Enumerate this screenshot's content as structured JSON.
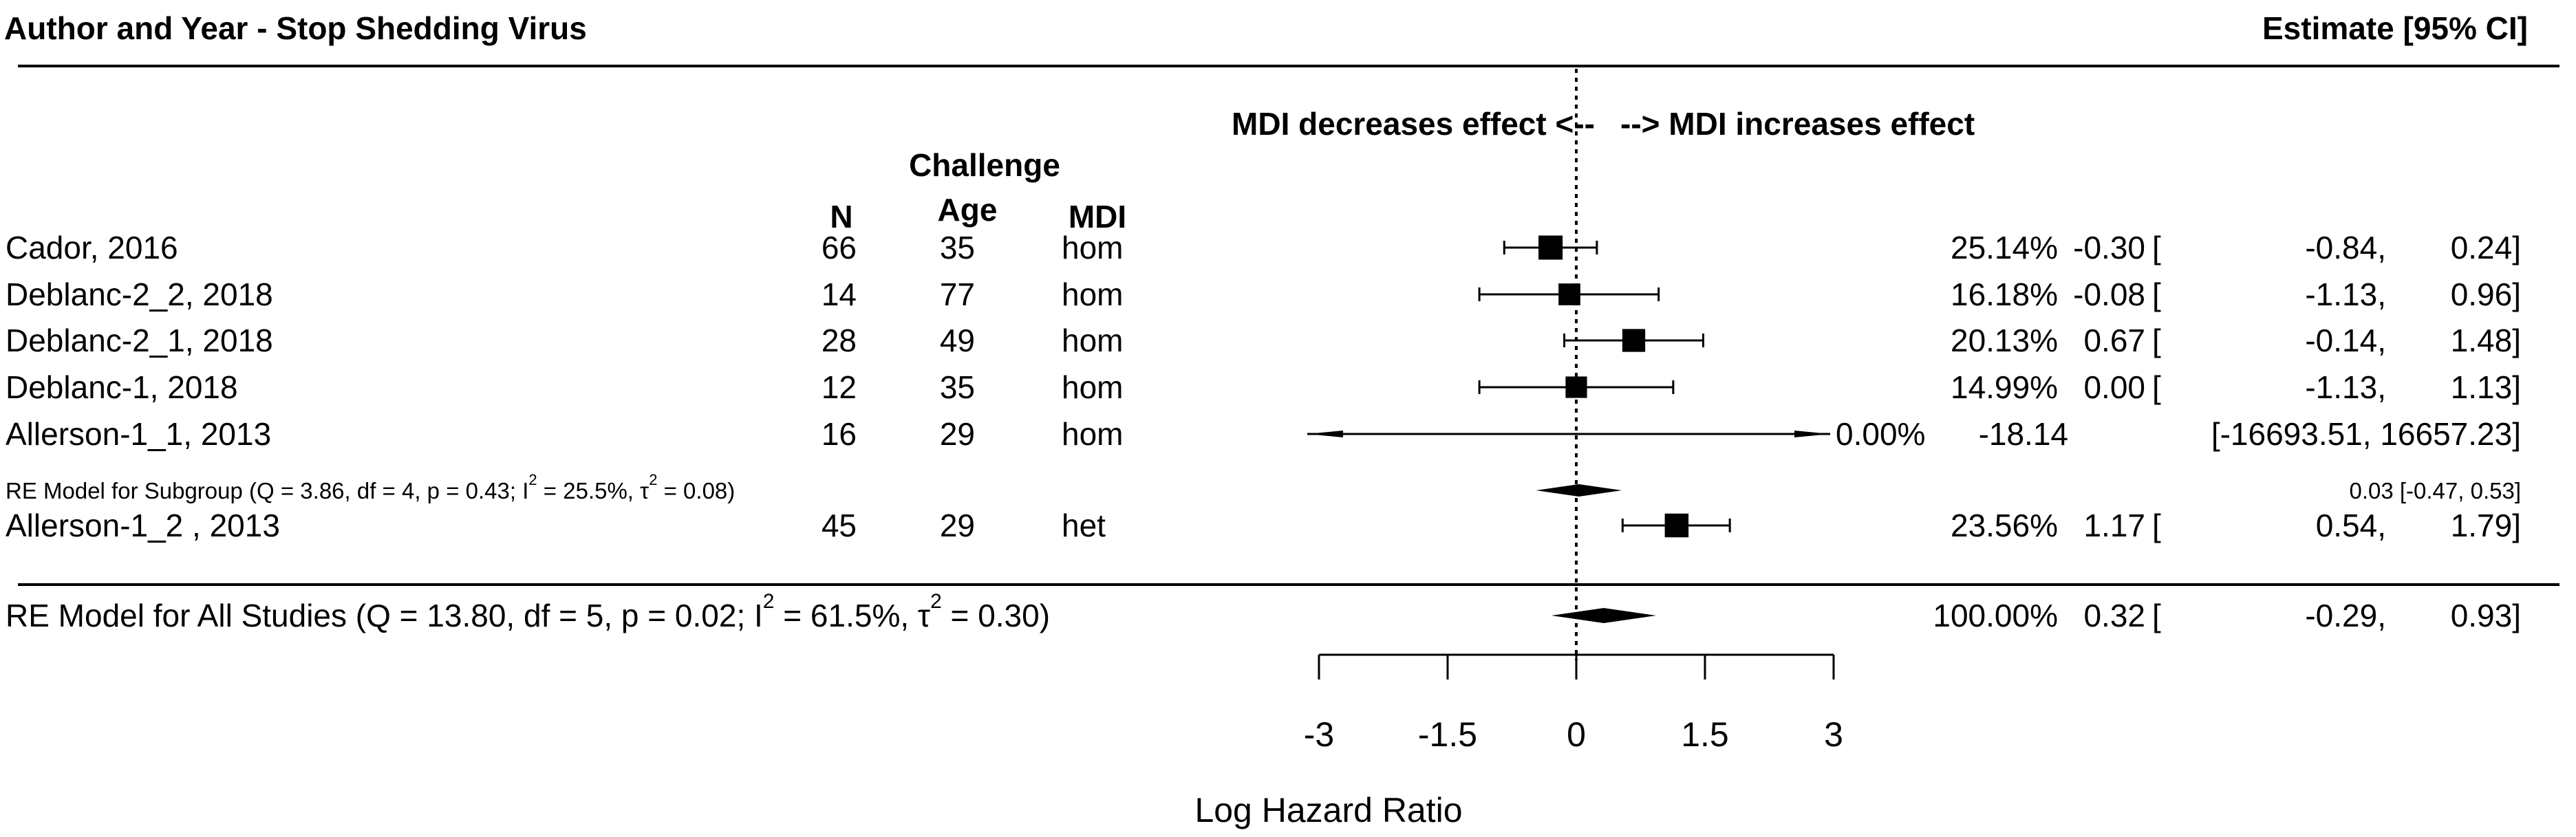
{
  "header": {
    "left_title": "Author and Year - Stop Shedding Virus",
    "right_title": "Estimate [95% CI]"
  },
  "direction": {
    "left": "MDI decreases effect <--",
    "right": "--> MDI increases effect"
  },
  "columns": {
    "challenge": "Challenge",
    "n": "N",
    "age": "Age",
    "mdi": "MDI"
  },
  "colors": {
    "ink": "#000000",
    "background": "#ffffff"
  },
  "chart_data": {
    "type": "forest",
    "xlabel": "Log Hazard Ratio",
    "xlim": [
      -3,
      3
    ],
    "ticks": [
      -3,
      -1.5,
      0,
      1.5,
      3
    ],
    "tick_labels": [
      "-3",
      "-1.5",
      "0",
      "1.5",
      "3"
    ],
    "reference_line": 0,
    "studies": [
      {
        "label": "Cador, 2016",
        "n": "66",
        "age": "35",
        "mdi": "hom",
        "weight": 25.14,
        "weight_label": "25.14%",
        "est": -0.3,
        "lo": -0.84,
        "hi": 0.24,
        "est_label": "-0.30",
        "lo_label": "-0.84,",
        "hi_label": "0.24]"
      },
      {
        "label": "Deblanc-2_2, 2018",
        "n": "14",
        "age": "77",
        "mdi": "hom",
        "weight": 16.18,
        "weight_label": "16.18%",
        "est": -0.08,
        "lo": -1.13,
        "hi": 0.96,
        "est_label": "-0.08",
        "lo_label": "-1.13,",
        "hi_label": "0.96]"
      },
      {
        "label": "Deblanc-2_1, 2018",
        "n": "28",
        "age": "49",
        "mdi": "hom",
        "weight": 20.13,
        "weight_label": "20.13%",
        "est": 0.67,
        "lo": -0.14,
        "hi": 1.48,
        "est_label": "0.67",
        "lo_label": "-0.14,",
        "hi_label": "1.48]"
      },
      {
        "label": "Deblanc-1, 2018",
        "n": "12",
        "age": "35",
        "mdi": "hom",
        "weight": 14.99,
        "weight_label": "14.99%",
        "est": 0.0,
        "lo": -1.13,
        "hi": 1.13,
        "est_label": "0.00",
        "lo_label": "-1.13,",
        "hi_label": "1.13]"
      },
      {
        "label": "Allerson-1_1, 2013",
        "n": "16",
        "age": "29",
        "mdi": "hom",
        "weight": 0.0,
        "weight_label": "0.00%",
        "est": -18.14,
        "lo": -16693.51,
        "hi": 16657.23,
        "est_label": "-18.14",
        "ci_label": "[-16693.51, 16657.23]",
        "truncated": true
      },
      {
        "label": "Allerson-1_2 , 2013",
        "n": "45",
        "age": "29",
        "mdi": "het",
        "weight": 23.56,
        "weight_label": "23.56%",
        "est": 1.17,
        "lo": 0.54,
        "hi": 1.79,
        "est_label": "1.17",
        "lo_label": "0.54,",
        "hi_label": "1.79]"
      }
    ],
    "subgroup": {
      "label_prefix": "RE Model for Subgroup (Q = 3.86, df = 4, p = 0.43; I",
      "label_mid": " = 25.5%, τ",
      "label_suffix": " = 0.08)",
      "superscript": "2",
      "est": 0.03,
      "lo": -0.47,
      "hi": 0.53,
      "summary_label": "0.03 [-0.47, 0.53]"
    },
    "overall": {
      "label_prefix": "RE Model for All Studies (Q = 13.80, df = 5, p = 0.02; I",
      "label_mid": " = 61.5%, τ",
      "label_suffix": " = 0.30)",
      "superscript": "2",
      "weight_label": "100.00%",
      "est": 0.32,
      "lo": -0.29,
      "hi": 0.93,
      "est_label": "0.32",
      "lo_label": "-0.29,",
      "hi_label": "0.93]"
    },
    "bracket": "["
  }
}
